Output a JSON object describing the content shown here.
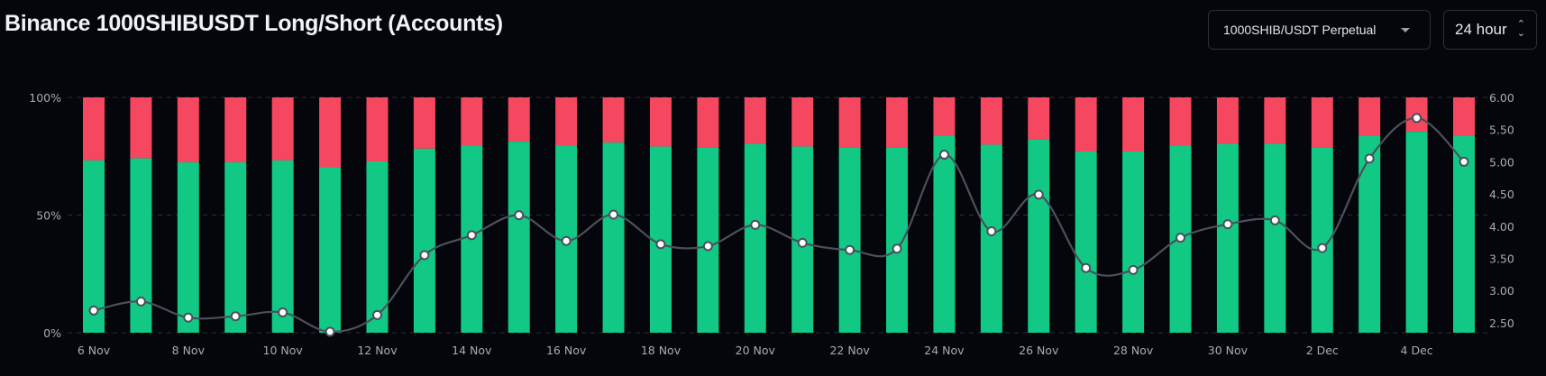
{
  "header": {
    "title": "Binance 1000SHIBUSDT Long/Short (Accounts)",
    "pair_select": "1000SHIB/USDT Perpetual",
    "period_select": "24 hour"
  },
  "colors": {
    "long": "#11c985",
    "short": "#f5475f",
    "ratio_line": "#4b505b",
    "background": "#04060b"
  },
  "chart_data": {
    "type": "bar",
    "stacked": true,
    "categories": [
      "6 Nov",
      "7 Nov",
      "8 Nov",
      "9 Nov",
      "10 Nov",
      "11 Nov",
      "12 Nov",
      "13 Nov",
      "14 Nov",
      "15 Nov",
      "16 Nov",
      "17 Nov",
      "18 Nov",
      "19 Nov",
      "20 Nov",
      "21 Nov",
      "22 Nov",
      "23 Nov",
      "24 Nov",
      "25 Nov",
      "26 Nov",
      "27 Nov",
      "28 Nov",
      "29 Nov",
      "30 Nov",
      "1 Dec",
      "2 Dec",
      "3 Dec",
      "4 Dec",
      "5 Dec"
    ],
    "x_tick_labels": [
      "6 Nov",
      "8 Nov",
      "10 Nov",
      "12 Nov",
      "14 Nov",
      "16 Nov",
      "18 Nov",
      "20 Nov",
      "22 Nov",
      "24 Nov",
      "26 Nov",
      "28 Nov",
      "30 Nov",
      "2 Dec",
      "4 Dec"
    ],
    "long_pct": [
      73.2,
      74.1,
      72.4,
      72.4,
      73.2,
      70.3,
      72.8,
      78.2,
      79.5,
      81.2,
      79.5,
      80.8,
      79.1,
      78.7,
      80.3,
      79.1,
      78.7,
      78.7,
      83.7,
      79.9,
      82.0,
      77.0,
      77.0,
      79.5,
      80.3,
      80.3,
      78.7,
      83.7,
      85.4,
      83.7
    ],
    "ratio": [
      2.69,
      2.83,
      2.58,
      2.6,
      2.66,
      2.36,
      2.62,
      3.55,
      3.86,
      4.17,
      3.77,
      4.18,
      3.72,
      3.69,
      4.02,
      3.74,
      3.63,
      3.65,
      5.11,
      3.92,
      4.49,
      3.35,
      3.32,
      3.82,
      4.03,
      4.09,
      3.66,
      5.05,
      5.68,
      5.0
    ],
    "y_left": {
      "ticks": [
        "0%",
        "50%",
        "100%"
      ],
      "range": [
        0,
        100
      ]
    },
    "y_right": {
      "ticks": [
        "2.50",
        "3.00",
        "3.50",
        "4.00",
        "4.50",
        "5.00",
        "5.50",
        "6.00"
      ],
      "range": [
        2.345,
        6.0
      ]
    },
    "grid": "dashed horizontal at 0%, 50%, 100%"
  }
}
